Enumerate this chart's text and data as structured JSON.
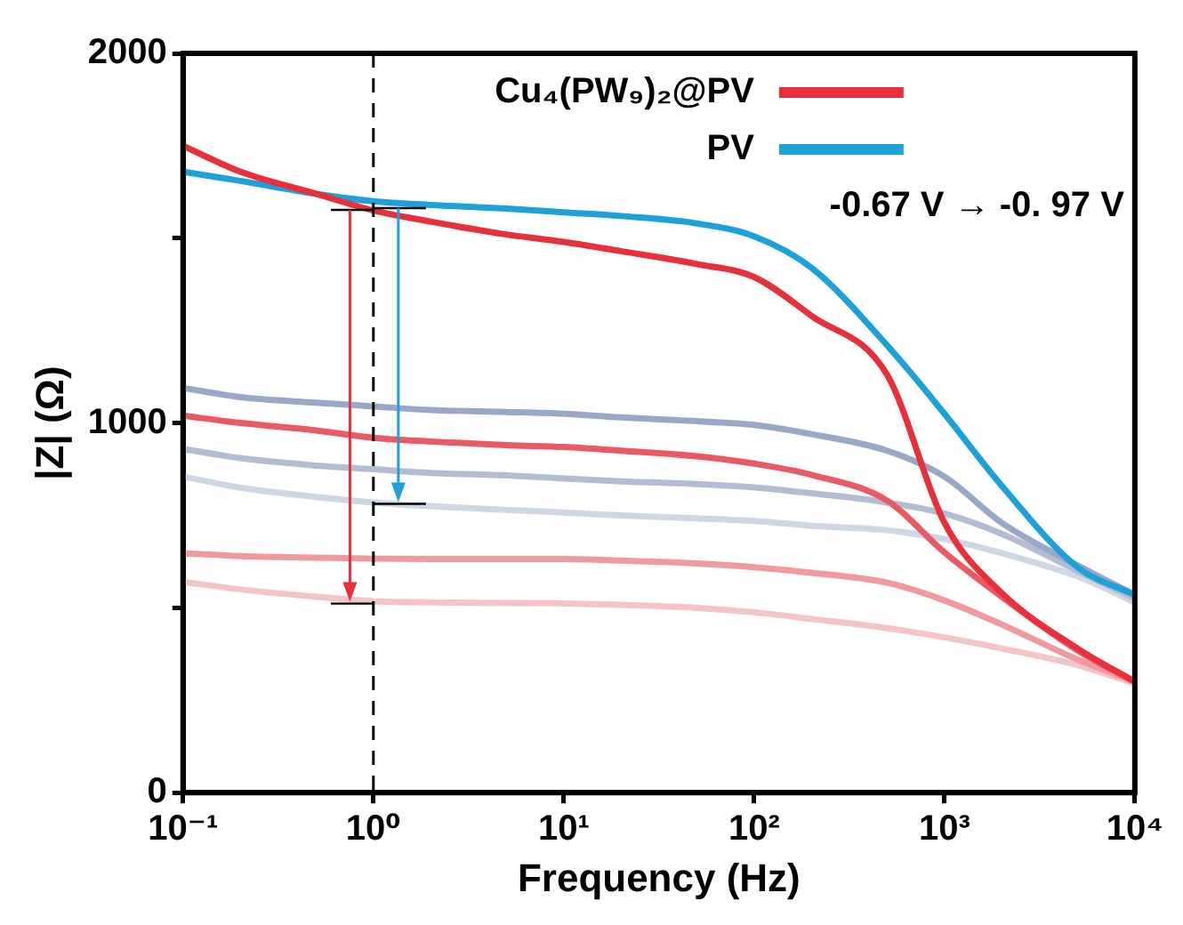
{
  "chart_data": {
    "type": "line",
    "xlabel": "Frequency (Hz)",
    "ylabel": "|Z| (Ω)",
    "x": [
      0.1,
      0.2,
      0.5,
      1,
      2,
      5,
      10,
      20,
      50,
      100,
      200,
      500,
      1000,
      2000,
      5000,
      10000
    ],
    "series": [
      {
        "name": "Cu₄(PW₉)₂@PV",
        "color": "#e8303a",
        "values": [
          1750,
          1680,
          1620,
          1575,
          1545,
          1510,
          1490,
          1465,
          1430,
          1395,
          1290,
          1130,
          730,
          540,
          390,
          300
        ]
      },
      {
        "color": "#ea5a64",
        "values": [
          1020,
          1000,
          980,
          960,
          950,
          940,
          935,
          925,
          910,
          890,
          860,
          790,
          650,
          530,
          385,
          300
        ]
      },
      {
        "color": "#f09aa0",
        "values": [
          648,
          640,
          636,
          633,
          632,
          632,
          632,
          628,
          620,
          610,
          595,
          568,
          520,
          455,
          360,
          300
        ]
      },
      {
        "color": "#f4c4c8",
        "values": [
          570,
          550,
          530,
          518,
          515,
          513,
          512,
          508,
          500,
          488,
          470,
          445,
          420,
          390,
          345,
          295
        ]
      },
      {
        "name": "PV",
        "color": "#1ea0d8",
        "values": [
          1680,
          1655,
          1620,
          1600,
          1590,
          1580,
          1570,
          1560,
          1540,
          1505,
          1420,
          1210,
          1025,
          830,
          610,
          535
        ]
      },
      {
        "color": "#9aa8c8",
        "values": [
          1095,
          1070,
          1055,
          1045,
          1035,
          1030,
          1025,
          1015,
          1005,
          995,
          970,
          925,
          855,
          730,
          615,
          535
        ]
      },
      {
        "color": "#b4bcd4",
        "values": [
          930,
          905,
          885,
          875,
          865,
          858,
          850,
          842,
          835,
          826,
          810,
          785,
          755,
          700,
          600,
          525
        ]
      },
      {
        "color": "#cfd6e4",
        "values": [
          855,
          825,
          800,
          785,
          775,
          765,
          758,
          750,
          742,
          735,
          722,
          710,
          686,
          648,
          585,
          515
        ]
      }
    ],
    "log": "x",
    "xlim": [
      0.1,
      10000
    ],
    "xticks": [
      {
        "value": 0.1,
        "label": "10⁻¹"
      },
      {
        "value": 1,
        "label": "10⁰"
      },
      {
        "value": 10,
        "label": "10¹"
      },
      {
        "value": 100,
        "label": "10²"
      },
      {
        "value": 1000,
        "label": "10³"
      },
      {
        "value": 10000,
        "label": "10⁴"
      }
    ],
    "ylim": [
      0,
      2000
    ],
    "yticks": [
      0,
      {
        "value": 500,
        "label": null
      },
      1000,
      {
        "value": 1500,
        "label": null
      },
      2000
    ],
    "ref_lines": [
      {
        "axis": "x",
        "value": 1,
        "color": "#000000",
        "line_style": "dashed"
      }
    ],
    "annotations": [
      "-0.67 V → -0. 97 V"
    ],
    "legend": "top right",
    "marker": "none",
    "line_style": "solid",
    "grid": false
  }
}
